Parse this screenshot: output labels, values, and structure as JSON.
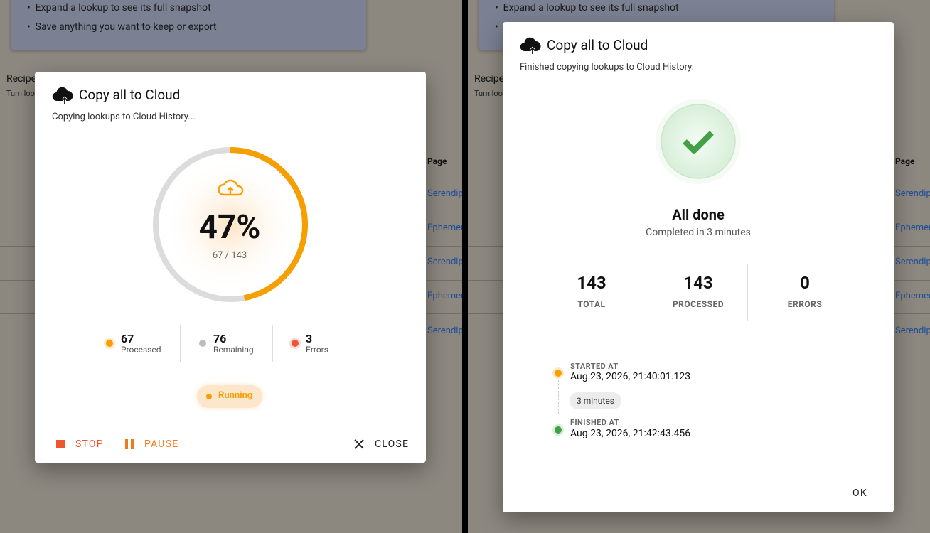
{
  "background": {
    "bullets": [
      "Expand a lookup to see its full snapshot",
      "Save anything you want to keep or export"
    ],
    "section_title": "Recipe",
    "section_sub": "Turn loo",
    "column": "Page",
    "links": [
      "Serendip",
      "Ephemer",
      "Serendip",
      "Ephemer",
      "Serendip"
    ]
  },
  "progress_dialog": {
    "title": "Copy all to Cloud",
    "subtitle": "Copying lookups to Cloud History...",
    "progress": {
      "value": 47,
      "label": "47%"
    },
    "count": "67 / 143",
    "stats": [
      {
        "value": "67",
        "label": "Processed"
      },
      {
        "value": "76",
        "label": "Remaining"
      },
      {
        "value": "3",
        "label": "Errors"
      }
    ],
    "status": "Running",
    "buttons": [
      "STOP",
      "PAUSE",
      "CLOSE"
    ]
  },
  "done_dialog": {
    "title": "Copy all to Cloud",
    "subtitle": "Finished copying lookups to Cloud History.",
    "heading": "All done",
    "subheading": "Completed in 3 minutes",
    "stats": [
      {
        "value": "143",
        "label": "TOTAL"
      },
      {
        "value": "143",
        "label": "PROCESSED"
      },
      {
        "value": "0",
        "label": "ERRORS"
      }
    ],
    "started_label": "STARTED AT",
    "started_at": "Aug 23, 2026, 21:40:01.123",
    "duration": "3 minutes",
    "finished_label": "FINISHED AT",
    "finished_at": "Aug 23, 2026, 21:42:43.456",
    "button": "OK"
  }
}
